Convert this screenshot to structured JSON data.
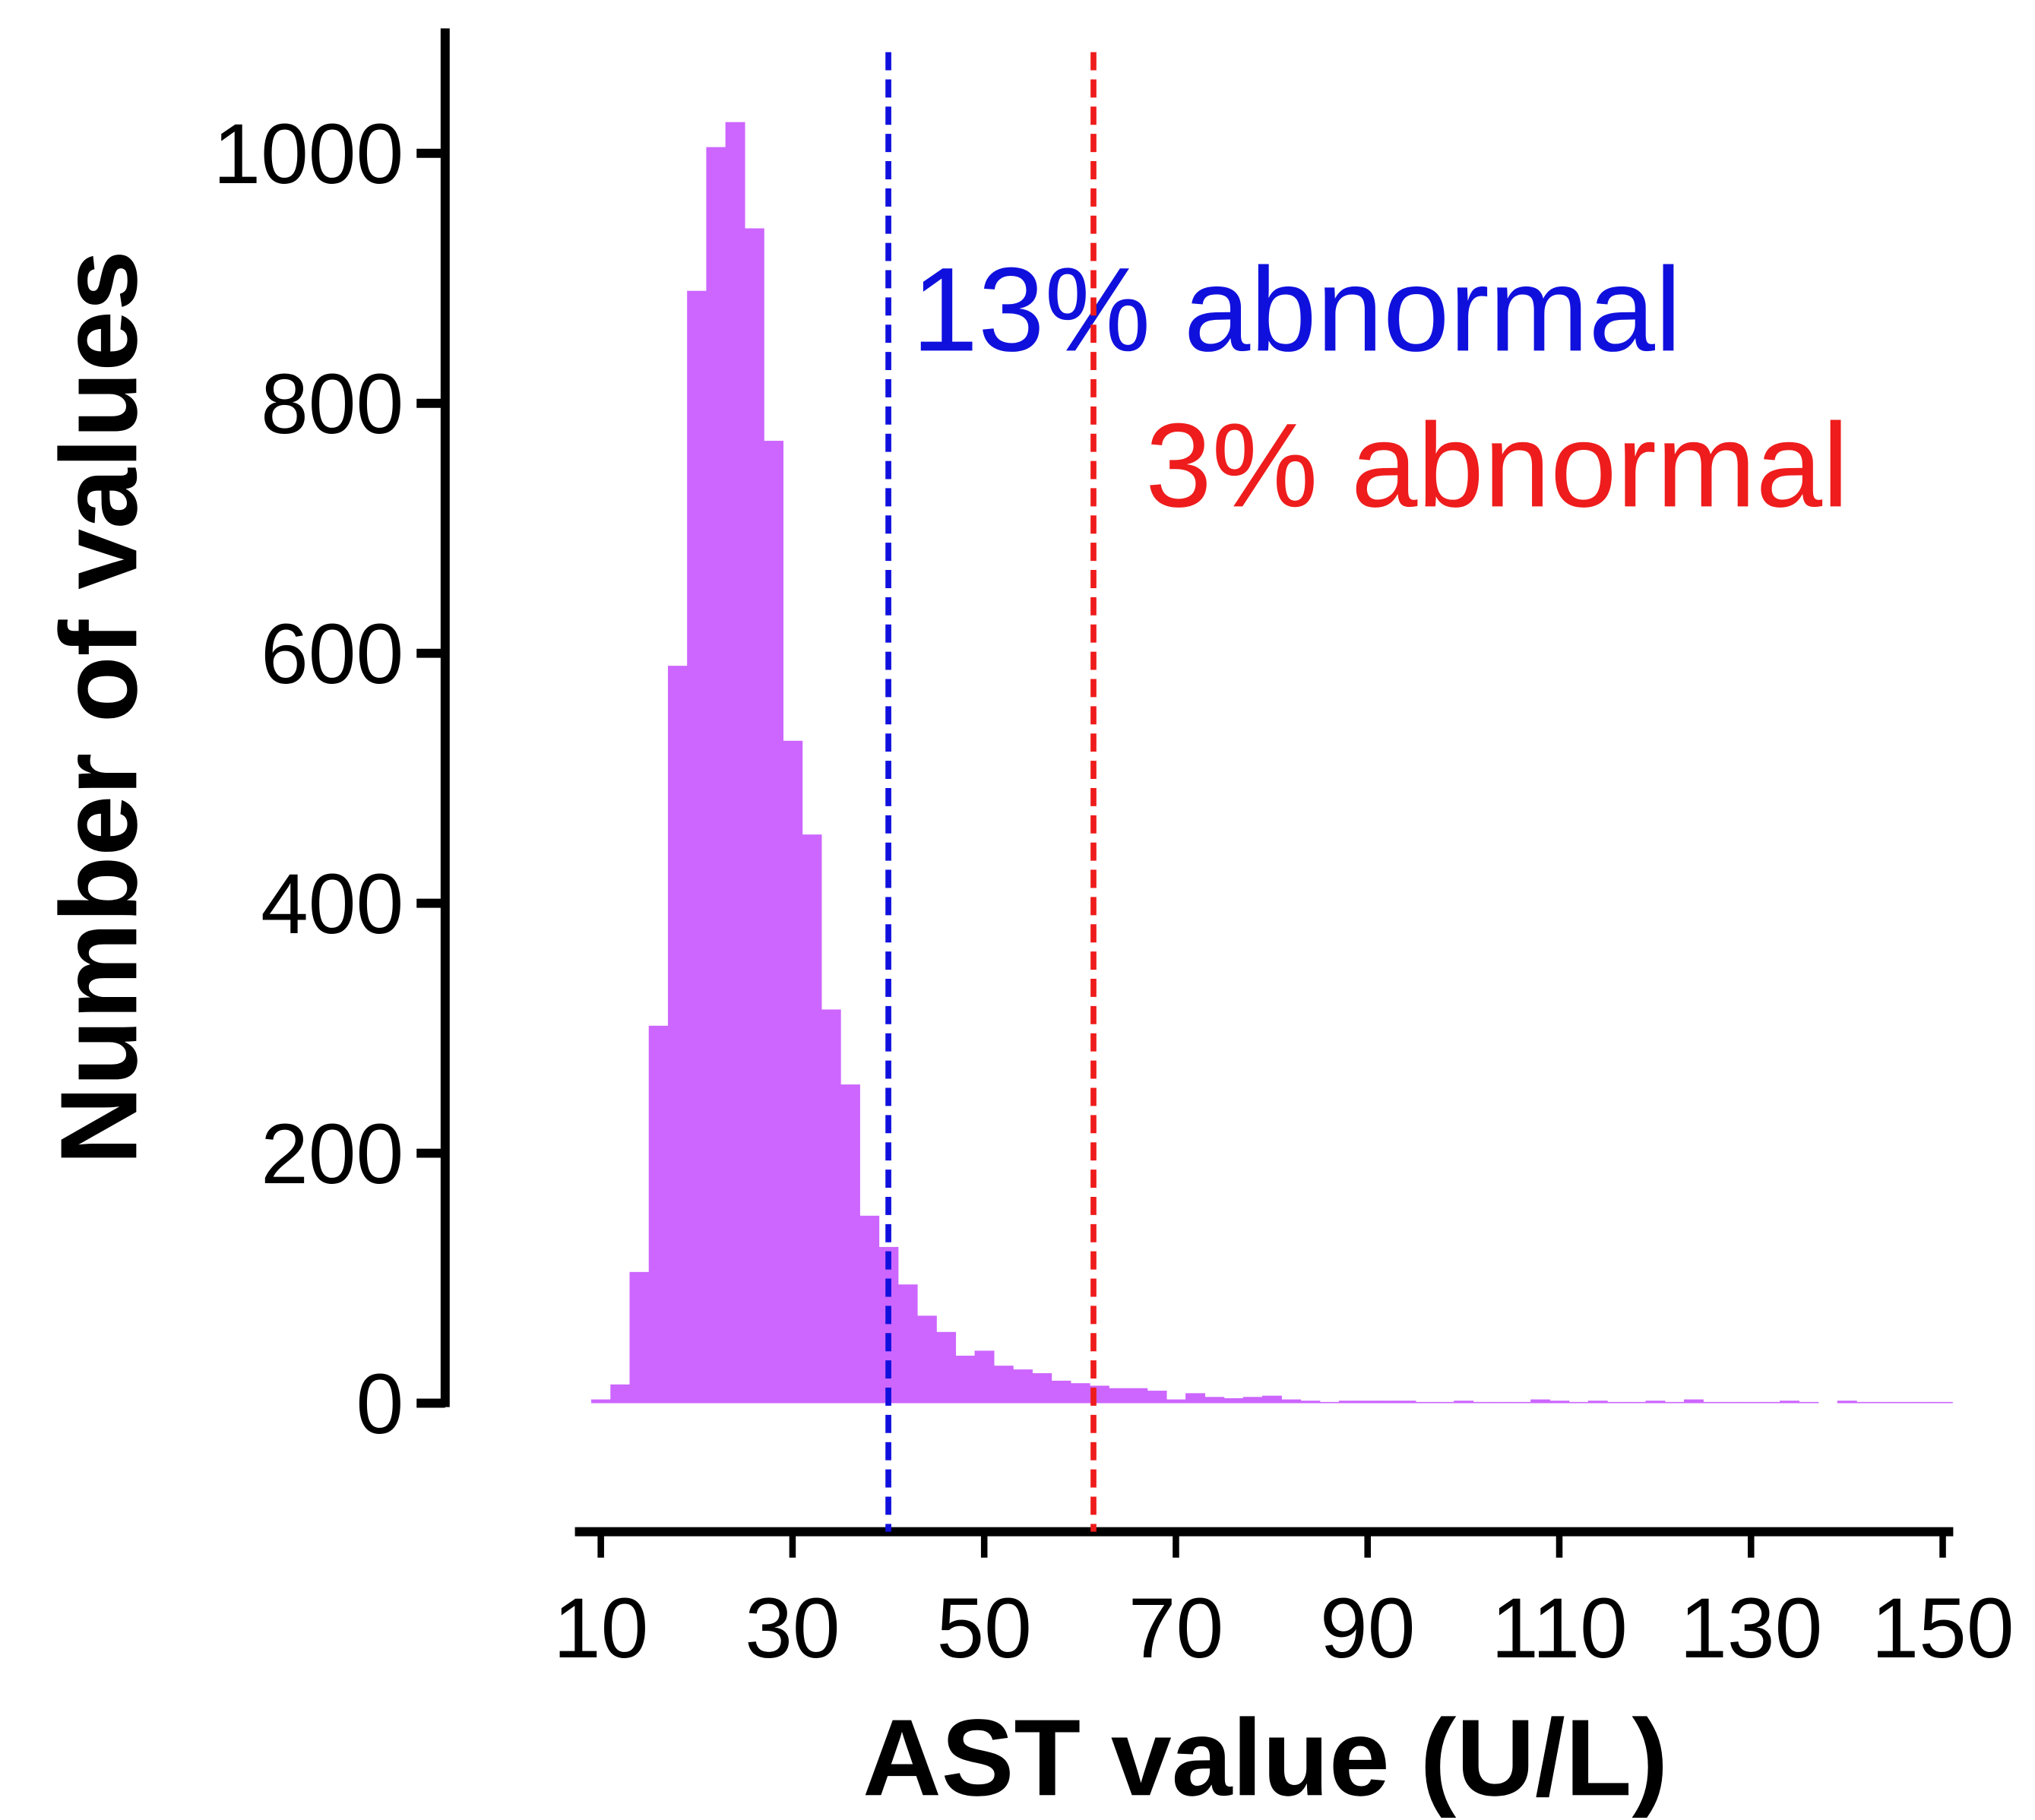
{
  "chart_data": {
    "type": "histogram",
    "xlabel": "AST value (U/L)",
    "ylabel": "Number of values",
    "color": "#cc66ff",
    "bins": [
      7,
      9,
      11,
      13,
      15,
      17,
      19,
      21,
      23,
      25,
      27,
      29,
      31,
      33,
      35,
      37,
      39,
      41,
      43,
      45,
      47,
      49,
      51,
      53,
      55,
      57,
      59,
      61,
      63,
      65,
      67,
      69,
      71,
      73,
      75,
      77,
      79,
      81,
      83,
      85,
      87,
      89,
      91,
      93,
      95,
      97,
      99,
      101,
      103,
      105,
      107,
      109,
      111,
      113,
      115,
      117,
      119,
      121,
      123,
      125,
      127,
      129,
      131,
      133,
      135,
      137,
      139,
      141,
      143,
      145,
      147,
      149,
      151
    ],
    "values": [
      0,
      3,
      15,
      105,
      302,
      590,
      890,
      1005,
      1025,
      940,
      770,
      530,
      455,
      315,
      255,
      150,
      125,
      95,
      70,
      57,
      38,
      42,
      30,
      27,
      24,
      18,
      16,
      14,
      12,
      12,
      10,
      3,
      8,
      5,
      4,
      5,
      6,
      3,
      2,
      1,
      2,
      2,
      2,
      2,
      1,
      1,
      2,
      1,
      1,
      1,
      3,
      2,
      1,
      2,
      1,
      1,
      2,
      1,
      3,
      1,
      1,
      1,
      1,
      2,
      1,
      0,
      2,
      1,
      1,
      1,
      1,
      1
    ],
    "xlim": [
      7.3,
      151.1
    ],
    "ylim": [
      0,
      1100
    ],
    "xticks": [
      10,
      30,
      50,
      70,
      90,
      110,
      130,
      150
    ],
    "yticks": [
      0,
      200,
      400,
      600,
      800,
      1000
    ],
    "vlines": [
      {
        "value": 40,
        "color": "#1010dd",
        "label": "13% abnormal"
      },
      {
        "value": 61.4,
        "color": "#ee1c1c",
        "label": "3% abnormal"
      }
    ]
  }
}
